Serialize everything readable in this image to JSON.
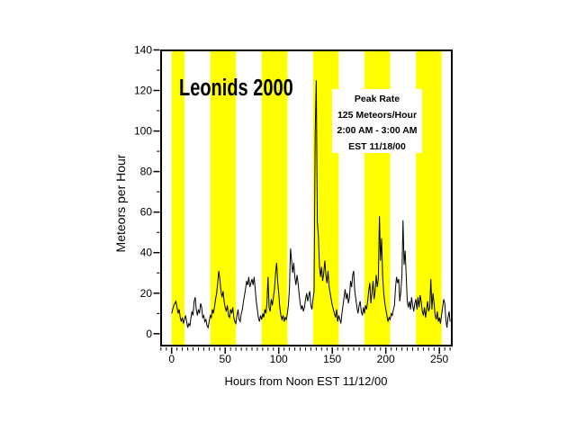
{
  "chart_data": {
    "type": "line",
    "title": "Leonids 2000",
    "xlabel": "Hours from Noon EST 11/12/00",
    "ylabel": "Meteors per Hour",
    "annotation": {
      "lines": [
        "Peak Rate",
        "125 Meteors/Hour",
        "2:00 AM - 3:00 AM",
        "EST 11/18/00"
      ]
    },
    "xlim": [
      -10.7,
      262.4
    ],
    "ylim": [
      -6.3,
      140.2
    ],
    "x_ticks": [
      0,
      50,
      100,
      150,
      200,
      250
    ],
    "x_minor_step": 5,
    "y_ticks": [
      0,
      20,
      40,
      60,
      80,
      100,
      120,
      140
    ],
    "y_minor_step": 10,
    "grid": false,
    "legend_position": "none",
    "day_bands": [
      [
        0,
        12
      ],
      [
        36,
        60
      ],
      [
        84,
        108
      ],
      [
        132,
        156
      ],
      [
        180,
        204
      ],
      [
        228,
        252
      ]
    ],
    "colors": {
      "band": "#FFFF00",
      "line": "#000000",
      "background": "#FFFFFF",
      "text": "#000000"
    },
    "x_start": 0,
    "x_step": 1,
    "values": [
      10,
      12,
      14,
      15,
      16,
      13,
      10,
      12,
      8,
      6,
      8,
      5,
      7,
      9,
      6,
      3,
      5,
      4,
      8,
      11,
      9,
      16,
      18,
      12,
      9,
      12,
      10,
      15,
      13,
      8,
      9,
      6,
      7,
      4,
      3,
      6,
      9,
      8,
      12,
      10,
      13,
      17,
      20,
      25,
      31,
      27,
      21,
      18,
      21,
      16,
      13,
      11,
      14,
      9,
      8,
      12,
      10,
      13,
      8,
      6,
      5,
      9,
      12,
      7,
      6,
      10,
      12,
      16,
      19,
      22,
      26,
      24,
      28,
      23,
      25,
      27,
      24,
      28,
      22,
      16,
      12,
      8,
      6,
      9,
      7,
      10,
      8,
      12,
      10,
      15,
      28,
      13,
      11,
      17,
      14,
      18,
      22,
      30,
      35,
      26,
      20,
      13,
      9,
      7,
      9,
      6,
      8,
      7,
      10,
      14,
      22,
      42,
      36,
      30,
      35,
      28,
      24,
      29,
      25,
      20,
      15,
      12,
      14,
      11,
      13,
      17,
      20,
      16,
      19,
      21,
      14,
      12,
      17,
      21,
      98,
      125,
      55,
      48,
      33,
      28,
      33,
      26,
      30,
      36,
      29,
      25,
      31,
      23,
      20,
      17,
      14,
      12,
      10,
      8,
      12,
      6,
      9,
      7,
      5,
      10,
      14,
      18,
      22,
      17,
      20,
      15,
      18,
      26,
      23,
      29,
      31,
      21,
      17,
      13,
      10,
      14,
      16,
      11,
      9,
      13,
      10,
      14,
      12,
      16,
      21,
      25,
      15,
      20,
      26,
      17,
      21,
      29,
      23,
      27,
      58,
      36,
      47,
      28,
      20,
      15,
      12,
      9,
      6,
      8,
      7,
      10,
      9,
      12,
      14,
      23,
      28,
      25,
      27,
      16,
      21,
      29,
      56,
      34,
      41,
      28,
      16,
      13,
      16,
      12,
      18,
      14,
      11,
      15,
      17,
      12,
      18,
      13,
      19,
      16,
      11,
      9,
      13,
      8,
      12,
      16,
      11,
      13,
      27,
      12,
      20,
      15,
      9,
      7,
      11,
      6,
      8,
      5,
      9,
      13,
      17,
      15,
      7,
      3,
      8,
      11,
      6
    ]
  }
}
